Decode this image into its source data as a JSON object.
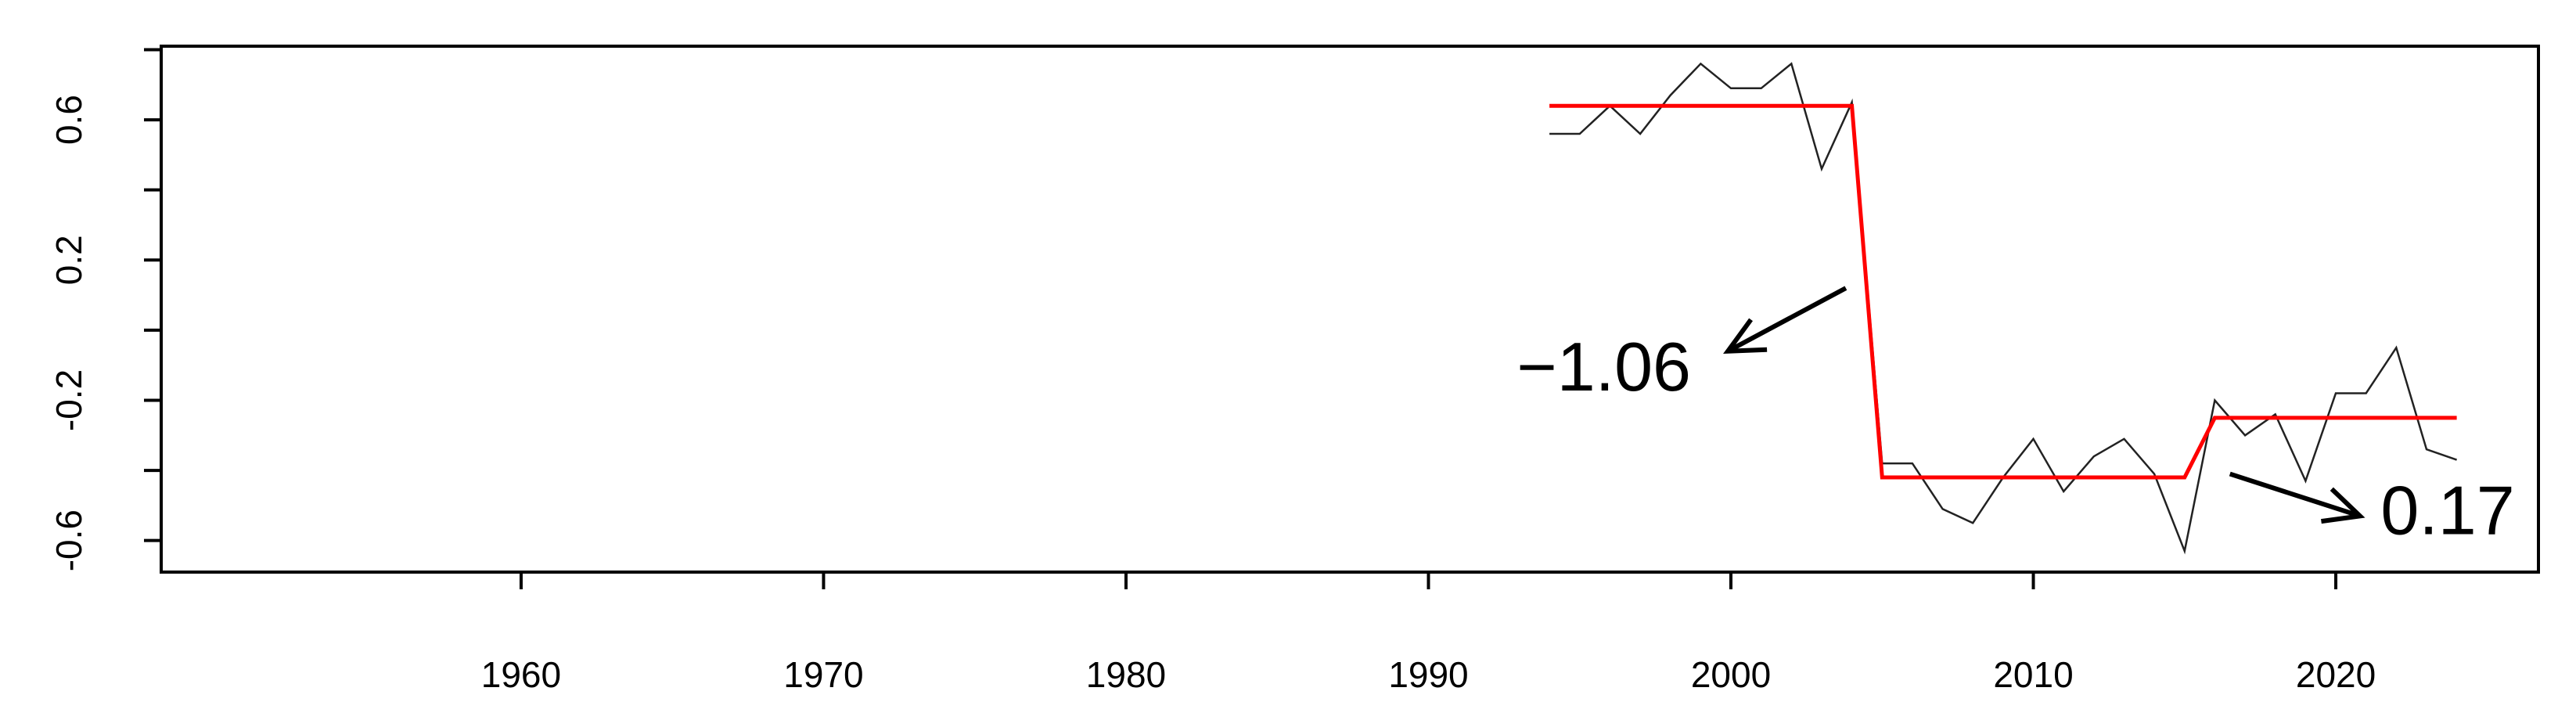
{
  "chart_data": {
    "type": "line",
    "series": [
      {
        "color": "#222222",
        "x": [
          1994,
          1995,
          1996,
          1997,
          1998,
          1999,
          2000,
          2001,
          2002,
          2003,
          2004,
          2005,
          2006,
          2007,
          2008,
          2009,
          2010,
          2011,
          2012,
          2013,
          2014,
          2015,
          2016,
          2017,
          2018,
          2019,
          2020,
          2021,
          2022,
          2023,
          2024
        ],
        "values": [
          0.56,
          0.56,
          0.64,
          0.56,
          0.67,
          0.76,
          0.69,
          0.69,
          0.76,
          0.46,
          0.65,
          -0.38,
          -0.38,
          -0.51,
          -0.55,
          -0.42,
          -0.31,
          -0.46,
          -0.36,
          -0.31,
          -0.41,
          -0.63,
          -0.2,
          -0.3,
          -0.24,
          -0.43,
          -0.18,
          -0.18,
          -0.05,
          -0.34,
          -0.37
        ]
      },
      {
        "color": "#ff0000",
        "x": [
          1994,
          2004,
          2005,
          2015,
          2016,
          2024
        ],
        "values": [
          0.64,
          0.64,
          -0.42,
          -0.42,
          -0.25,
          -0.25
        ]
      }
    ],
    "xlim": [
      1948.1,
      2026.7
    ],
    "ylim": [
      -0.69,
      0.81
    ],
    "xticks": [
      1960,
      1970,
      1980,
      1990,
      2000,
      2010,
      2020
    ],
    "yticks": [
      -0.6,
      -0.2,
      0.2,
      0.6
    ],
    "yminor_ticks": [
      -0.4,
      0,
      0.4,
      0.8
    ],
    "annotations": [
      {
        "text": "−1.06",
        "x": 1995.8,
        "y": -0.12,
        "arrow_from": [
          2003.8,
          0.12
        ],
        "arrow_to": [
          1999.9,
          -0.06
        ]
      },
      {
        "text": "0.17",
        "x": 2023.7,
        "y": -0.53,
        "arrow_from": [
          2016.5,
          -0.41
        ],
        "arrow_to": [
          2020.8,
          -0.53
        ]
      }
    ]
  }
}
